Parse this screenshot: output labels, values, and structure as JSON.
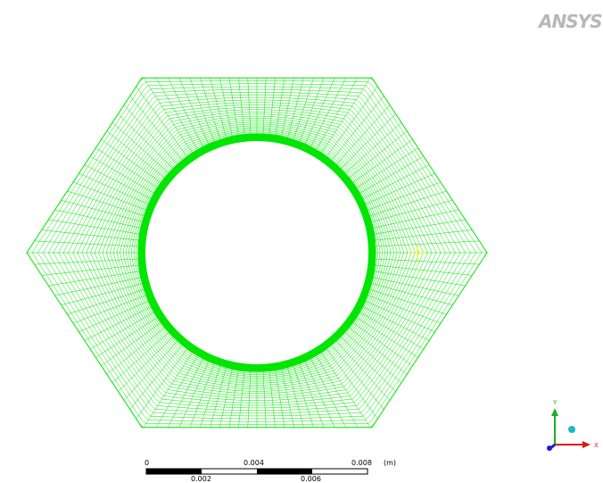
{
  "brand": {
    "logo_text": "ANSYS"
  },
  "scale_bar": {
    "top_labels": [
      "0",
      "0.004",
      "0.008"
    ],
    "bottom_labels": [
      "0.002",
      "0.006"
    ],
    "unit": "(m)"
  },
  "triad": {
    "y_label": "Y",
    "x_label": "X"
  },
  "colors": {
    "mesh": "#00e600",
    "probe": "#f1f14a",
    "triad_y": "#1bb01b",
    "triad_x": "#e01515",
    "triad_z": "#1a1ad8",
    "triad_ball": "#19b9c8"
  }
}
